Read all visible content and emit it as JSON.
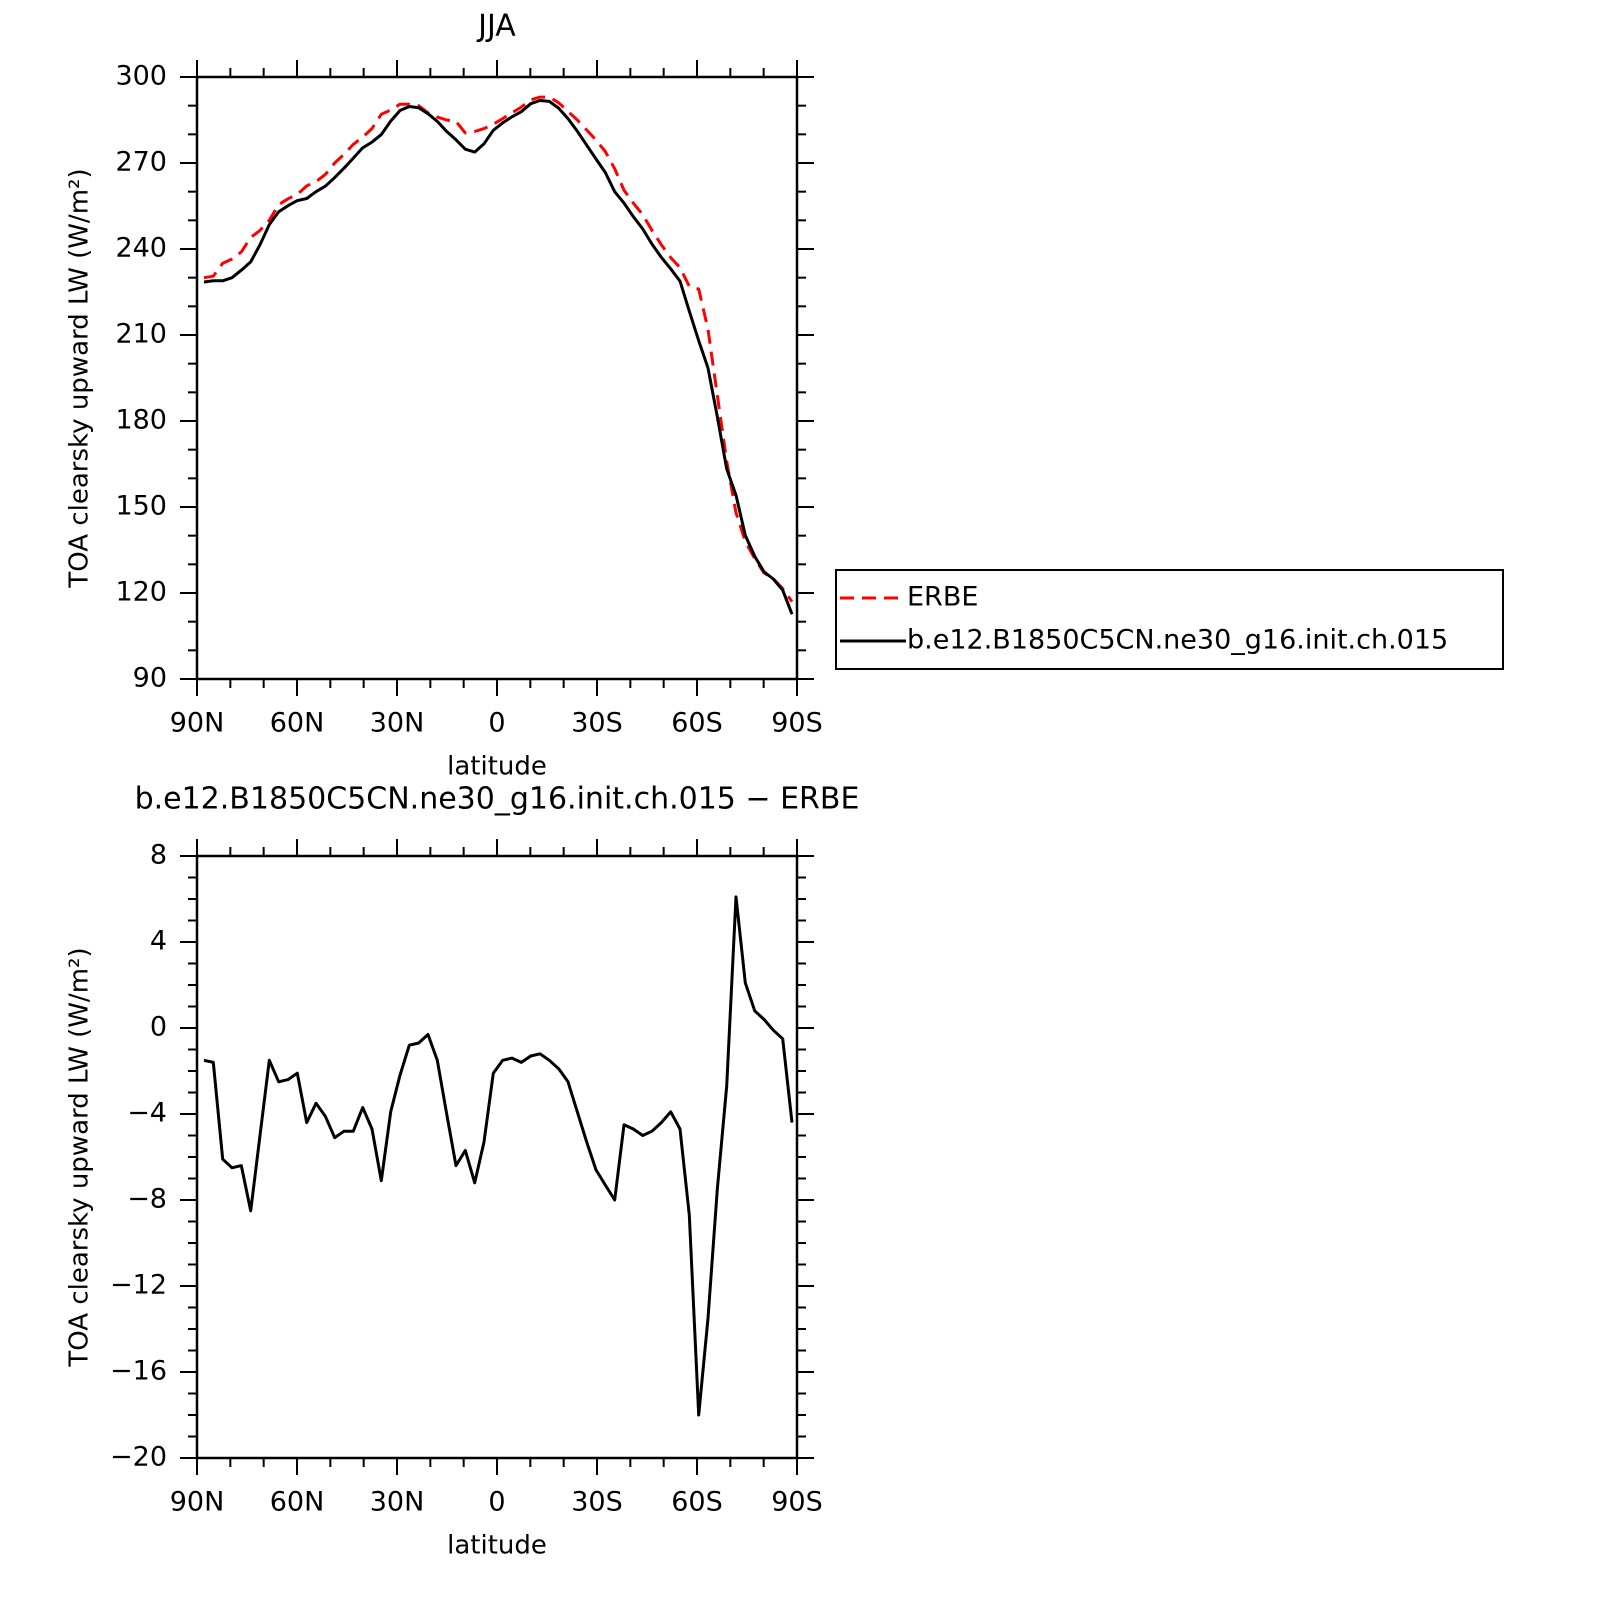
{
  "chart_data": [
    {
      "type": "line",
      "title": "JJA",
      "xlabel": "latitude",
      "ylabel": "TOA clearsky upward LW (W/m²)",
      "x": [
        87.9,
        85.1,
        82.3,
        79.5,
        76.7,
        73.9,
        71.1,
        68.3,
        65.5,
        62.7,
        59.9,
        57.1,
        54.3,
        51.5,
        48.7,
        45.9,
        43.1,
        40.3,
        37.5,
        34.7,
        31.9,
        29.1,
        26.3,
        23.5,
        20.7,
        17.9,
        15.1,
        12.3,
        9.5,
        6.7,
        3.9,
        1.1,
        -1.7,
        -4.5,
        -7.3,
        -10.1,
        -12.9,
        -15.7,
        -18.5,
        -21.3,
        -24.1,
        -26.9,
        -29.7,
        -32.5,
        -35.3,
        -38.1,
        -40.9,
        -43.7,
        -46.5,
        -49.3,
        -52.1,
        -54.9,
        -57.7,
        -60.5,
        -63.3,
        -66.1,
        -68.9,
        -71.7,
        -74.5,
        -77.3,
        -80.1,
        -82.9,
        -85.7,
        -88.5
      ],
      "series": [
        {
          "name": "ERBE",
          "color": "#ff0000",
          "linestyle": "dashed",
          "values": [
            230,
            230.5,
            235,
            236.5,
            239,
            244,
            246.5,
            250,
            255.5,
            257.5,
            259,
            262,
            263.5,
            266,
            270,
            273,
            276.5,
            279,
            282,
            287,
            288.5,
            290.5,
            290.5,
            290,
            287.5,
            286,
            285,
            284.5,
            280.5,
            281,
            282,
            283.5,
            285.5,
            287.5,
            289.5,
            292,
            293,
            293,
            291,
            288,
            285,
            281.5,
            278,
            274,
            268,
            260.5,
            256,
            252,
            246.5,
            241.5,
            237,
            233.5,
            227,
            226,
            212,
            189,
            166,
            148,
            138,
            132,
            127,
            125,
            121.5,
            117
          ]
        },
        {
          "name": "b.e12.B1850C5CN.ne30_g16.init.ch.015",
          "color": "#000000",
          "linestyle": "solid",
          "values": [
            228.5,
            228.9,
            228.9,
            230.0,
            232.6,
            235.5,
            241.5,
            248.5,
            253.0,
            255.1,
            256.9,
            257.6,
            260.0,
            261.9,
            264.9,
            268.2,
            271.7,
            275.3,
            277.3,
            279.9,
            284.6,
            288.3,
            289.7,
            289.3,
            287.2,
            284.5,
            281.0,
            278.1,
            274.8,
            273.8,
            276.7,
            281.4,
            284.0,
            286.1,
            287.9,
            290.7,
            291.8,
            291.5,
            289.1,
            285.5,
            281.1,
            276.2,
            271.4,
            266.7,
            260.0,
            256.0,
            251.3,
            247.0,
            241.7,
            237.1,
            233.1,
            228.8,
            218.3,
            208.0,
            198.5,
            181.5,
            163.3,
            154.1,
            140.1,
            132.8,
            127.4,
            124.9,
            121.0,
            112.6
          ]
        }
      ],
      "xlim": [
        90,
        -90
      ],
      "xticks": [
        {
          "value": 90,
          "label": "90N"
        },
        {
          "value": 60,
          "label": "60N"
        },
        {
          "value": 30,
          "label": "30N"
        },
        0,
        {
          "value": -30,
          "label": "30S"
        },
        {
          "value": -60,
          "label": "60S"
        },
        {
          "value": -90,
          "label": "90S"
        }
      ],
      "ylim": [
        90,
        300
      ],
      "yticks": [
        90,
        120,
        150,
        180,
        210,
        240,
        270,
        300
      ],
      "legend": "right"
    },
    {
      "type": "line",
      "title": "b.e12.B1850C5CN.ne30_g16.init.ch.015 − ERBE",
      "xlabel": "latitude",
      "ylabel": "TOA clearsky upward LW (W/m²)",
      "x": [
        87.9,
        85.1,
        82.3,
        79.5,
        76.7,
        73.9,
        71.1,
        68.3,
        65.5,
        62.7,
        59.9,
        57.1,
        54.3,
        51.5,
        48.7,
        45.9,
        43.1,
        40.3,
        37.5,
        34.7,
        31.9,
        29.1,
        26.3,
        23.5,
        20.7,
        17.9,
        15.1,
        12.3,
        9.5,
        6.7,
        3.9,
        1.1,
        -1.7,
        -4.5,
        -7.3,
        -10.1,
        -12.9,
        -15.7,
        -18.5,
        -21.3,
        -24.1,
        -26.9,
        -29.7,
        -32.5,
        -35.3,
        -38.1,
        -40.9,
        -43.7,
        -46.5,
        -49.3,
        -52.1,
        -54.9,
        -57.7,
        -60.5,
        -63.3,
        -66.1,
        -68.9,
        -71.7,
        -74.5,
        -77.3,
        -80.1,
        -82.9,
        -85.7,
        -88.5
      ],
      "values": [
        -1.5,
        -1.6,
        -6.1,
        -6.5,
        -6.4,
        -8.5,
        -5,
        -1.5,
        -2.5,
        -2.4,
        -2.1,
        -4.4,
        -3.5,
        -4.1,
        -5.1,
        -4.8,
        -4.8,
        -3.7,
        -4.7,
        -7.1,
        -3.9,
        -2.2,
        -0.8,
        -0.7,
        -0.3,
        -1.5,
        -4.0,
        -6.4,
        -5.7,
        -7.2,
        -5.3,
        -2.1,
        -1.5,
        -1.4,
        -1.6,
        -1.3,
        -1.2,
        -1.5,
        -1.9,
        -2.5,
        -3.9,
        -5.3,
        -6.6,
        -7.3,
        -8.0,
        -4.5,
        -4.7,
        -5.0,
        -4.8,
        -4.4,
        -3.9,
        -4.7,
        -8.7,
        -18.0,
        -13.5,
        -7.5,
        -2.7,
        6.1,
        2.1,
        0.8,
        0.4,
        -0.1,
        -0.5,
        -4.4
      ],
      "color": "#000000",
      "xlim": [
        90,
        -90
      ],
      "xticks": [
        {
          "value": 90,
          "label": "90N"
        },
        {
          "value": 60,
          "label": "60N"
        },
        {
          "value": 30,
          "label": "30N"
        },
        0,
        {
          "value": -30,
          "label": "30S"
        },
        {
          "value": -60,
          "label": "60S"
        },
        {
          "value": -90,
          "label": "90S"
        }
      ],
      "ylim": [
        -20,
        8
      ],
      "yticks": [
        {
          "value": -20,
          "label": "−20"
        },
        {
          "value": -16,
          "label": "−16"
        },
        {
          "value": -12,
          "label": "−12"
        },
        {
          "value": -8,
          "label": "−8"
        },
        {
          "value": -4,
          "label": "−4"
        },
        0,
        4,
        8
      ]
    }
  ]
}
